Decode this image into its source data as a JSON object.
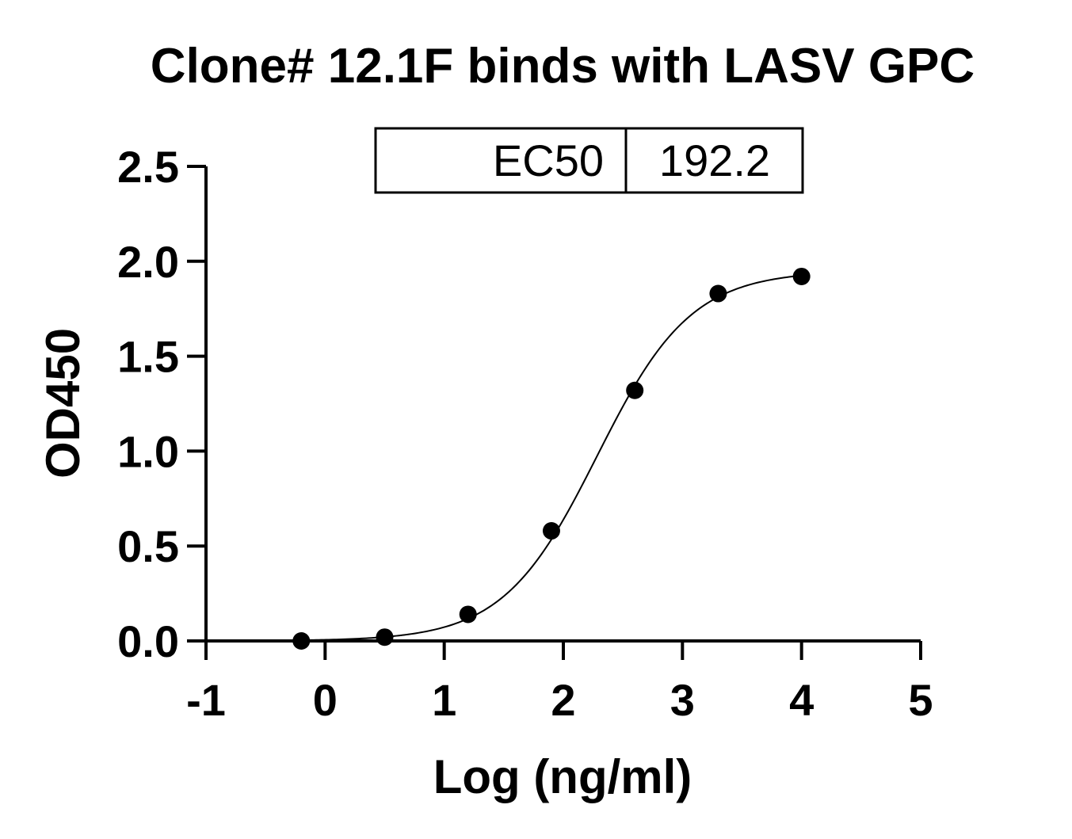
{
  "chart_data": {
    "type": "scatter",
    "title": "Clone# 12.1F binds with LASV GPC",
    "xlabel": "Log (ng/ml)",
    "ylabel": "OD450",
    "xlim": [
      -1,
      5
    ],
    "ylim": [
      0,
      2.5
    ],
    "x_ticks": [
      "-1",
      "0",
      "1",
      "2",
      "3",
      "4",
      "5"
    ],
    "y_ticks": [
      "0.0",
      "0.5",
      "1.0",
      "1.5",
      "2.0",
      "2.5"
    ],
    "series": [
      {
        "x": [
          -0.2,
          0.5,
          1.2,
          1.9,
          2.6,
          3.3,
          4.0
        ],
        "y": [
          0.0,
          0.02,
          0.14,
          0.58,
          1.32,
          1.83,
          1.92
        ]
      }
    ],
    "fit_curve": {
      "model": "four-parameter logistic",
      "bottom": 0.0,
      "top": 1.95,
      "log_ec50": 2.284,
      "hill_slope": 1.1
    },
    "results_table": {
      "label": "EC50",
      "value": "192.2"
    },
    "grid": false,
    "legend": "none",
    "colors": {
      "marker": "#000000",
      "line": "#000000",
      "background": "#ffffff"
    }
  }
}
